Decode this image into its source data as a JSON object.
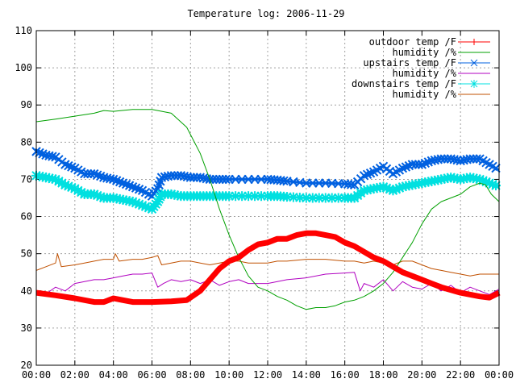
{
  "chart_data": {
    "type": "line",
    "title": "Temperature log: 2006-11-29",
    "xlabel": "",
    "ylabel": "",
    "xlim": [
      0,
      24
    ],
    "ylim": [
      20,
      110
    ],
    "grid": true,
    "legend_position": "top-right",
    "x_ticks": [
      "00:00",
      "02:00",
      "04:00",
      "06:00",
      "08:00",
      "10:00",
      "12:00",
      "14:00",
      "16:00",
      "18:00",
      "20:00",
      "22:00",
      "00:00"
    ],
    "y_ticks": [
      20,
      30,
      40,
      50,
      60,
      70,
      80,
      90,
      100,
      110
    ],
    "series": [
      {
        "name": "outdoor temp /F",
        "color": "#ff0000",
        "style": "thick-line-plus",
        "points": [
          [
            0,
            39.5
          ],
          [
            1,
            38.8
          ],
          [
            2,
            38.0
          ],
          [
            3,
            37.0
          ],
          [
            3.5,
            37.0
          ],
          [
            4,
            38.0
          ],
          [
            4.5,
            37.5
          ],
          [
            5,
            37.0
          ],
          [
            6,
            37.0
          ],
          [
            7,
            37.2
          ],
          [
            7.8,
            37.5
          ],
          [
            8.5,
            40.0
          ],
          [
            9,
            43.0
          ],
          [
            9.5,
            46.0
          ],
          [
            10,
            48.0
          ],
          [
            10.5,
            49.0
          ],
          [
            11,
            51.0
          ],
          [
            11.5,
            52.5
          ],
          [
            12,
            53.0
          ],
          [
            12.5,
            54.0
          ],
          [
            13,
            54.0
          ],
          [
            13.5,
            55.0
          ],
          [
            14,
            55.5
          ],
          [
            14.5,
            55.5
          ],
          [
            15,
            55.0
          ],
          [
            15.5,
            54.5
          ],
          [
            16,
            53.0
          ],
          [
            16.5,
            52.0
          ],
          [
            17,
            50.5
          ],
          [
            17.5,
            49.0
          ],
          [
            18,
            48.0
          ],
          [
            18.5,
            46.5
          ],
          [
            19,
            45.0
          ],
          [
            19.5,
            44.0
          ],
          [
            20,
            43.0
          ],
          [
            20.5,
            42.0
          ],
          [
            21,
            41.0
          ],
          [
            22,
            39.5
          ],
          [
            23,
            38.5
          ],
          [
            23.5,
            38.2
          ],
          [
            24,
            39.5
          ]
        ]
      },
      {
        "name": "humidity /%",
        "color": "#00a000",
        "style": "thin-line",
        "points": [
          [
            0,
            85.5
          ],
          [
            1,
            86.2
          ],
          [
            2,
            87.0
          ],
          [
            3,
            87.8
          ],
          [
            3.5,
            88.5
          ],
          [
            4,
            88.3
          ],
          [
            5,
            88.8
          ],
          [
            6,
            88.8
          ],
          [
            7,
            87.8
          ],
          [
            7.8,
            84.0
          ],
          [
            8.5,
            77.0
          ],
          [
            9,
            70.0
          ],
          [
            9.5,
            62.0
          ],
          [
            10,
            55.0
          ],
          [
            10.5,
            49.0
          ],
          [
            11,
            44.0
          ],
          [
            11.5,
            41.0
          ],
          [
            12,
            40.0
          ],
          [
            12.5,
            38.5
          ],
          [
            13,
            37.5
          ],
          [
            13.5,
            36.0
          ],
          [
            14,
            35.0
          ],
          [
            14.5,
            35.5
          ],
          [
            15,
            35.5
          ],
          [
            15.5,
            36.0
          ],
          [
            16,
            37.0
          ],
          [
            16.5,
            37.5
          ],
          [
            17,
            38.5
          ],
          [
            17.5,
            40.0
          ],
          [
            18,
            42.0
          ],
          [
            18.5,
            45.0
          ],
          [
            19,
            49.0
          ],
          [
            19.5,
            53.0
          ],
          [
            20,
            58.0
          ],
          [
            20.5,
            62.0
          ],
          [
            21,
            64.0
          ],
          [
            21.5,
            65.0
          ],
          [
            22,
            66.0
          ],
          [
            22.5,
            68.0
          ],
          [
            23,
            69.0
          ],
          [
            23.3,
            68.5
          ],
          [
            23.6,
            66.0
          ],
          [
            24,
            64.0
          ]
        ]
      },
      {
        "name": "upstairs temp /F",
        "color": "#0060e0",
        "style": "cross-markers",
        "points": [
          [
            0,
            77.5
          ],
          [
            0.5,
            76.5
          ],
          [
            1,
            76.0
          ],
          [
            1.5,
            74.0
          ],
          [
            2,
            73.0
          ],
          [
            2.5,
            71.5
          ],
          [
            3,
            71.5
          ],
          [
            3.5,
            70.5
          ],
          [
            4,
            70.0
          ],
          [
            4.5,
            69.0
          ],
          [
            5,
            68.0
          ],
          [
            5.5,
            67.0
          ],
          [
            6,
            65.5
          ],
          [
            6.3,
            67.5
          ],
          [
            6.5,
            70.5
          ],
          [
            7,
            71.0
          ],
          [
            7.5,
            71.0
          ],
          [
            8,
            70.5
          ],
          [
            8.5,
            70.5
          ],
          [
            9,
            70.0
          ],
          [
            9.5,
            70.0
          ],
          [
            10,
            70.0
          ],
          [
            11,
            70.0
          ],
          [
            12,
            70.0
          ],
          [
            12.5,
            69.8
          ],
          [
            13,
            69.5
          ],
          [
            14,
            69.0
          ],
          [
            15,
            69.0
          ],
          [
            16,
            68.8
          ],
          [
            16.5,
            68.5
          ],
          [
            17,
            71.0
          ],
          [
            17.5,
            72.0
          ],
          [
            18,
            73.5
          ],
          [
            18.5,
            71.5
          ],
          [
            19,
            73.0
          ],
          [
            19.5,
            74.0
          ],
          [
            20,
            74.0
          ],
          [
            20.5,
            75.0
          ],
          [
            21,
            75.5
          ],
          [
            21.5,
            75.5
          ],
          [
            22,
            75.0
          ],
          [
            22.5,
            75.5
          ],
          [
            23,
            75.5
          ],
          [
            23.5,
            74.0
          ],
          [
            24,
            72.5
          ]
        ]
      },
      {
        "name": "humidity /%",
        "color": "#b000c0",
        "style": "thin-line",
        "points": [
          [
            0,
            39.5
          ],
          [
            0.5,
            39.2
          ],
          [
            1,
            41.0
          ],
          [
            1.5,
            40.0
          ],
          [
            2,
            42.0
          ],
          [
            2.5,
            42.5
          ],
          [
            3,
            43.0
          ],
          [
            3.5,
            43.0
          ],
          [
            4,
            43.5
          ],
          [
            4.5,
            44.0
          ],
          [
            5,
            44.5
          ],
          [
            5.5,
            44.5
          ],
          [
            6,
            44.8
          ],
          [
            6.3,
            41.0
          ],
          [
            6.6,
            42.0
          ],
          [
            7,
            43.0
          ],
          [
            7.5,
            42.5
          ],
          [
            8,
            43.0
          ],
          [
            8.5,
            42.0
          ],
          [
            9,
            43.0
          ],
          [
            9.5,
            41.5
          ],
          [
            10,
            42.5
          ],
          [
            10.5,
            43.0
          ],
          [
            11,
            42.0
          ],
          [
            12,
            42.0
          ],
          [
            12.5,
            42.5
          ],
          [
            13,
            43.0
          ],
          [
            14,
            43.5
          ],
          [
            15,
            44.5
          ],
          [
            16,
            44.8
          ],
          [
            16.5,
            45.0
          ],
          [
            16.8,
            40.0
          ],
          [
            17,
            42.0
          ],
          [
            17.5,
            41.0
          ],
          [
            18,
            43.0
          ],
          [
            18.5,
            40.0
          ],
          [
            19,
            42.5
          ],
          [
            19.5,
            41.0
          ],
          [
            20,
            40.5
          ],
          [
            20.5,
            42.0
          ],
          [
            21,
            40.0
          ],
          [
            21.5,
            41.5
          ],
          [
            22,
            39.5
          ],
          [
            22.5,
            41.0
          ],
          [
            23,
            40.0
          ],
          [
            23.5,
            39.0
          ],
          [
            24,
            40.5
          ]
        ]
      },
      {
        "name": "downstairs temp /F",
        "color": "#00e0e0",
        "style": "star-markers",
        "points": [
          [
            0,
            71.0
          ],
          [
            0.5,
            70.5
          ],
          [
            1,
            70.0
          ],
          [
            1.5,
            68.5
          ],
          [
            2,
            67.5
          ],
          [
            2.5,
            66.0
          ],
          [
            3,
            66.0
          ],
          [
            3.5,
            65.0
          ],
          [
            4,
            65.0
          ],
          [
            4.5,
            64.5
          ],
          [
            5,
            64.0
          ],
          [
            5.5,
            63.0
          ],
          [
            6,
            62.0
          ],
          [
            6.3,
            64.0
          ],
          [
            6.5,
            66.0
          ],
          [
            7,
            66.0
          ],
          [
            7.5,
            65.5
          ],
          [
            8,
            65.5
          ],
          [
            8.5,
            65.5
          ],
          [
            9,
            65.5
          ],
          [
            9.5,
            65.5
          ],
          [
            10,
            65.5
          ],
          [
            11,
            65.5
          ],
          [
            12,
            65.5
          ],
          [
            12.5,
            65.5
          ],
          [
            13,
            65.3
          ],
          [
            14,
            65.0
          ],
          [
            15,
            65.0
          ],
          [
            16,
            65.0
          ],
          [
            16.5,
            65.0
          ],
          [
            17,
            67.0
          ],
          [
            17.5,
            67.5
          ],
          [
            18,
            68.0
          ],
          [
            18.5,
            67.0
          ],
          [
            19,
            68.0
          ],
          [
            19.5,
            68.5
          ],
          [
            20,
            69.0
          ],
          [
            20.5,
            69.5
          ],
          [
            21,
            70.0
          ],
          [
            21.5,
            70.5
          ],
          [
            22,
            70.0
          ],
          [
            22.5,
            70.5
          ],
          [
            23,
            70.0
          ],
          [
            23.5,
            69.0
          ],
          [
            24,
            68.0
          ]
        ]
      },
      {
        "name": "humidity /%",
        "color": "#c05000",
        "style": "thin-line",
        "points": [
          [
            0,
            45.5
          ],
          [
            0.5,
            46.5
          ],
          [
            1,
            47.5
          ],
          [
            1.1,
            50.0
          ],
          [
            1.3,
            46.5
          ],
          [
            2,
            47.0
          ],
          [
            2.5,
            47.5
          ],
          [
            3,
            48.0
          ],
          [
            3.5,
            48.5
          ],
          [
            4,
            48.5
          ],
          [
            4.1,
            50.0
          ],
          [
            4.3,
            48.0
          ],
          [
            5,
            48.5
          ],
          [
            5.5,
            48.5
          ],
          [
            6,
            49.0
          ],
          [
            6.3,
            49.5
          ],
          [
            6.5,
            47.0
          ],
          [
            7,
            47.5
          ],
          [
            7.5,
            48.0
          ],
          [
            8,
            48.0
          ],
          [
            8.5,
            47.5
          ],
          [
            9,
            47.0
          ],
          [
            9.5,
            47.5
          ],
          [
            10,
            48.0
          ],
          [
            10.5,
            48.0
          ],
          [
            11,
            47.5
          ],
          [
            11.5,
            47.5
          ],
          [
            12,
            47.5
          ],
          [
            12.5,
            48.0
          ],
          [
            13,
            48.0
          ],
          [
            14,
            48.5
          ],
          [
            15,
            48.5
          ],
          [
            16,
            48.0
          ],
          [
            16.5,
            48.0
          ],
          [
            17,
            47.5
          ],
          [
            17.5,
            48.0
          ],
          [
            18,
            47.5
          ],
          [
            18.5,
            47.0
          ],
          [
            19,
            48.0
          ],
          [
            19.5,
            48.0
          ],
          [
            20,
            47.0
          ],
          [
            20.5,
            46.0
          ],
          [
            21,
            45.5
          ],
          [
            21.5,
            45.0
          ],
          [
            22,
            44.5
          ],
          [
            22.5,
            44.0
          ],
          [
            23,
            44.5
          ],
          [
            23.5,
            44.5
          ],
          [
            24,
            44.5
          ]
        ]
      }
    ]
  }
}
